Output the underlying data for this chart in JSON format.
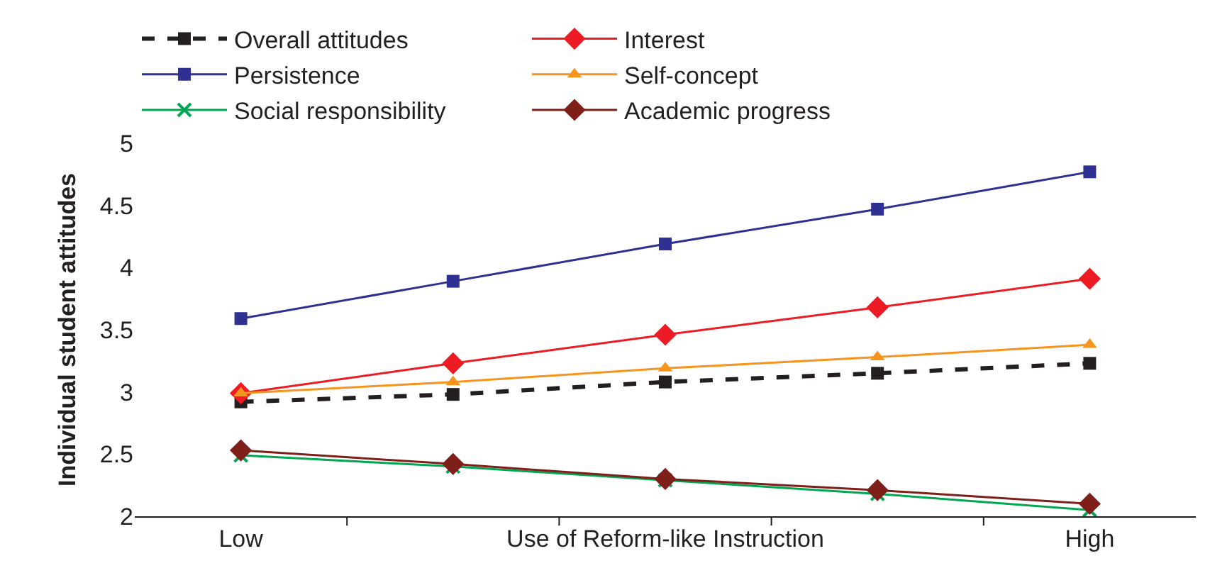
{
  "chart_data": {
    "type": "line",
    "ylabel": "Individual student attitudes",
    "categories": [
      "Low",
      null,
      "Use of Reform-like Instruction",
      null,
      "High"
    ],
    "ylim": [
      2,
      5
    ],
    "yticks": [
      2,
      2.5,
      3,
      3.5,
      4,
      4.5,
      5
    ],
    "grid": false,
    "legend": "top",
    "series": [
      {
        "name": "Overall attitudes",
        "color": "#231f20",
        "values": [
          2.92,
          2.98,
          3.08,
          3.15,
          3.23
        ],
        "marker": "square",
        "line_style": "dashed"
      },
      {
        "name": "Interest",
        "color": "#ed1c24",
        "values": [
          2.99,
          3.23,
          3.46,
          3.68,
          3.91
        ],
        "marker": "diamond",
        "line_style": "solid"
      },
      {
        "name": "Persistence",
        "color": "#2e3192",
        "values": [
          3.59,
          3.89,
          4.19,
          4.47,
          4.77
        ],
        "marker": "square",
        "line_style": "solid"
      },
      {
        "name": "Self-concept",
        "color": "#f7941d",
        "values": [
          2.99,
          3.08,
          3.19,
          3.28,
          3.38
        ],
        "marker": "triangle",
        "line_style": "solid"
      },
      {
        "name": "Social responsibility",
        "color": "#00a651",
        "values": [
          2.49,
          2.4,
          2.29,
          2.18,
          2.05
        ],
        "marker": "cross",
        "line_style": "solid"
      },
      {
        "name": "Academic progress",
        "color": "#7f1f1a",
        "values": [
          2.53,
          2.42,
          2.3,
          2.21,
          2.1
        ],
        "marker": "diamond",
        "line_style": "solid"
      }
    ]
  }
}
